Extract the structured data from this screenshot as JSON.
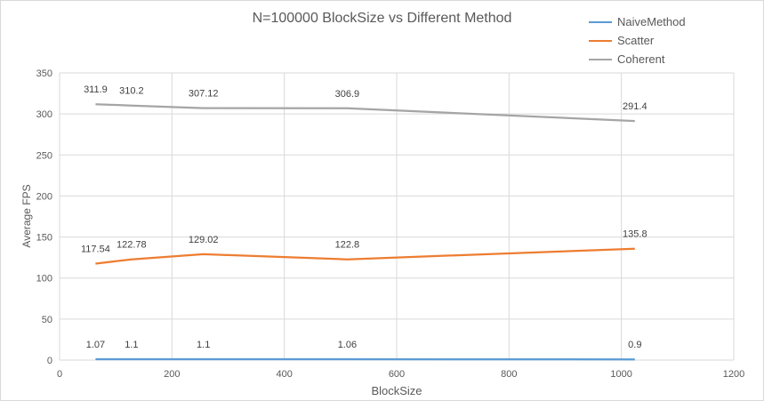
{
  "chart_data": {
    "type": "line",
    "title": "N=100000 BlockSize vs Different Method",
    "xlabel": "BlockSize",
    "ylabel": "Average FPS",
    "xlim": [
      0,
      1200
    ],
    "ylim": [
      0,
      350
    ],
    "xticks": [
      0,
      200,
      400,
      600,
      800,
      1000,
      1200
    ],
    "yticks": [
      0,
      50,
      100,
      150,
      200,
      250,
      300,
      350
    ],
    "grid": true,
    "legend_position": "top-right",
    "x": [
      64,
      128,
      256,
      512,
      1024
    ],
    "series": [
      {
        "name": "NaiveMethod",
        "color": "#5b9bd5",
        "values": [
          1.07,
          1.1,
          1.1,
          1.06,
          0.9
        ],
        "labels": [
          "1.07",
          "1.1",
          "1.1",
          "1.06",
          "0.9"
        ]
      },
      {
        "name": "Scatter",
        "color": "#ed7d31",
        "values": [
          117.54,
          122.78,
          129.02,
          122.8,
          135.8
        ],
        "labels": [
          "117.54",
          "122.78",
          "129.02",
          "122.8",
          "135.8"
        ]
      },
      {
        "name": "Coherent",
        "color": "#a5a5a5",
        "values": [
          311.9,
          310.2,
          307.12,
          306.9,
          291.4
        ],
        "labels": [
          "311.9",
          "310.2",
          "307.12",
          "306.9",
          "291.4"
        ]
      }
    ]
  }
}
